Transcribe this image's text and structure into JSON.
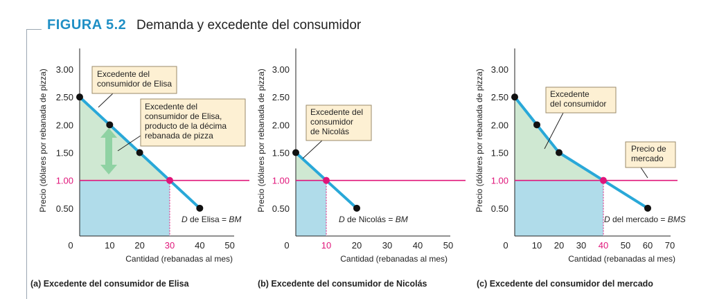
{
  "figure": {
    "label": "FIGURA 5.2",
    "title": "Demanda y excedente del consumidor"
  },
  "colors": {
    "demand_line": "#29a8d8",
    "market_price_line": "#e0157a",
    "surplus_fill": "#cfe8d2",
    "expenditure_fill": "#b0dcea",
    "callout_fill": "#fdf0d3",
    "arrow": "#8fd2a3",
    "accent_title": "#1f8fc5"
  },
  "chart_data": [
    {
      "type": "line",
      "caption": "(a) Excedente del consumidor de Elisa",
      "xlabel": "Cantidad (rebanadas al mes)",
      "ylabel": "Precio (dólares por rebanada de pizza)",
      "xlim": [
        0,
        50
      ],
      "ylim": [
        0,
        3.0
      ],
      "xticks": [
        "0",
        "10",
        "20",
        "30",
        "40",
        "50"
      ],
      "yticks": [
        "0.50",
        "1.00",
        "1.50",
        "2.00",
        "2.50",
        "3.00"
      ],
      "highlight_xtick": "30",
      "highlight_ytick": "1.00",
      "market_price": 1.0,
      "equilibrium": {
        "x": 30,
        "y": 1.0
      },
      "series": [
        {
          "x": [
            0,
            10,
            20,
            30,
            40
          ],
          "y": [
            2.5,
            2.0,
            1.5,
            1.0,
            0.5
          ]
        }
      ],
      "points": [
        {
          "x": 0,
          "y": 2.5
        },
        {
          "x": 10,
          "y": 2.0
        },
        {
          "x": 20,
          "y": 1.5
        },
        {
          "x": 40,
          "y": 0.5
        }
      ],
      "demand_label": {
        "d": "D",
        "text": " de Elisa = ",
        "tail": "BM"
      },
      "annotations": [
        {
          "lines": [
            "Excedente del",
            "consumidor de Elisa"
          ]
        },
        {
          "lines": [
            "Excedente del",
            "consumidor de Elisa,",
            "producto de la décima",
            "rebanada de pizza"
          ]
        }
      ]
    },
    {
      "type": "line",
      "caption": "(b) Excedente del consumidor de Nicolás",
      "xlabel": "Cantidad (rebanadas al mes)",
      "ylabel": "Precio (dólares por rebanada de pizza)",
      "xlim": [
        0,
        50
      ],
      "ylim": [
        0,
        3.0
      ],
      "xticks": [
        "0",
        "10",
        "20",
        "30",
        "40",
        "50"
      ],
      "yticks": [
        "0.50",
        "1.00",
        "1.50",
        "2.00",
        "2.50",
        "3.00"
      ],
      "highlight_xtick": "10",
      "highlight_ytick": "1.00",
      "market_price": 1.0,
      "equilibrium": {
        "x": 10,
        "y": 1.0
      },
      "series": [
        {
          "x": [
            0,
            10,
            20
          ],
          "y": [
            1.5,
            1.0,
            0.5
          ]
        }
      ],
      "points": [
        {
          "x": 0,
          "y": 1.5
        },
        {
          "x": 20,
          "y": 0.5
        }
      ],
      "demand_label": {
        "d": "D",
        "text": " de Nicolás = ",
        "tail": "BM"
      },
      "annotations": [
        {
          "lines": [
            "Excedente del",
            "consumidor",
            "de Nicolás"
          ]
        }
      ]
    },
    {
      "type": "line",
      "caption": "(c) Excedente del consumidor del mercado",
      "xlabel": "Cantidad (rebanadas al mes)",
      "ylabel": "Precio (dólares por rebanada de pizza)",
      "xlim": [
        0,
        70
      ],
      "ylim": [
        0,
        3.0
      ],
      "xticks": [
        "0",
        "10",
        "20",
        "30",
        "40",
        "50",
        "60",
        "70"
      ],
      "yticks": [
        "0.50",
        "1.00",
        "1.50",
        "2.00",
        "2.50",
        "3.00"
      ],
      "highlight_xtick": "40",
      "highlight_ytick": "1.00",
      "market_price": 1.0,
      "equilibrium": {
        "x": 40,
        "y": 1.0
      },
      "series": [
        {
          "x": [
            0,
            10,
            20,
            40,
            60
          ],
          "y": [
            2.5,
            2.0,
            1.5,
            1.0,
            0.5
          ]
        }
      ],
      "points": [
        {
          "x": 0,
          "y": 2.5
        },
        {
          "x": 10,
          "y": 2.0
        },
        {
          "x": 20,
          "y": 1.5
        },
        {
          "x": 60,
          "y": 0.5
        }
      ],
      "demand_label": {
        "d": "D",
        "text": " del mercado = ",
        "tail": "BMS"
      },
      "annotations": [
        {
          "lines": [
            "Excedente",
            "del consumidor"
          ]
        },
        {
          "lines": [
            "Precio de",
            "mercado"
          ]
        }
      ]
    }
  ]
}
